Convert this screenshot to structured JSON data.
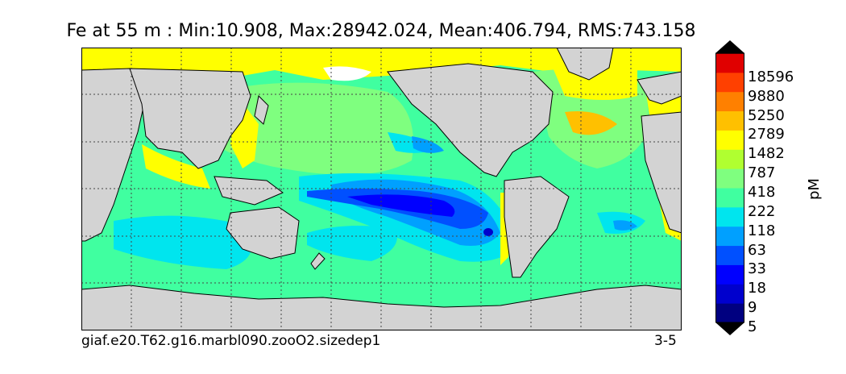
{
  "title": "Fe at 55 m : Min:10.908, Max:28942.024, Mean:406.794, RMS:743.158",
  "caption_left": "giaf.e20.T62.g16.marbl090.zooO2.sizedep1",
  "caption_right": "3-5",
  "colorbar": {
    "unit": "pM",
    "tick_labels": [
      "18596",
      "9880",
      "5250",
      "2789",
      "1482",
      "787",
      "418",
      "222",
      "118",
      "63",
      "33",
      "18",
      "9",
      "5"
    ],
    "colors": [
      "#000080",
      "#0000cd",
      "#0000ff",
      "#0050ff",
      "#00a0ff",
      "#00e5ee",
      "#40ffa0",
      "#7fff7f",
      "#b0ff30",
      "#ffff00",
      "#ffc000",
      "#ff8000",
      "#ff4000",
      "#e00000",
      "#800000"
    ],
    "extend": "both"
  },
  "colors": {
    "land": "#d3d3d3",
    "coast": "#000000",
    "grid": "#444444"
  }
}
